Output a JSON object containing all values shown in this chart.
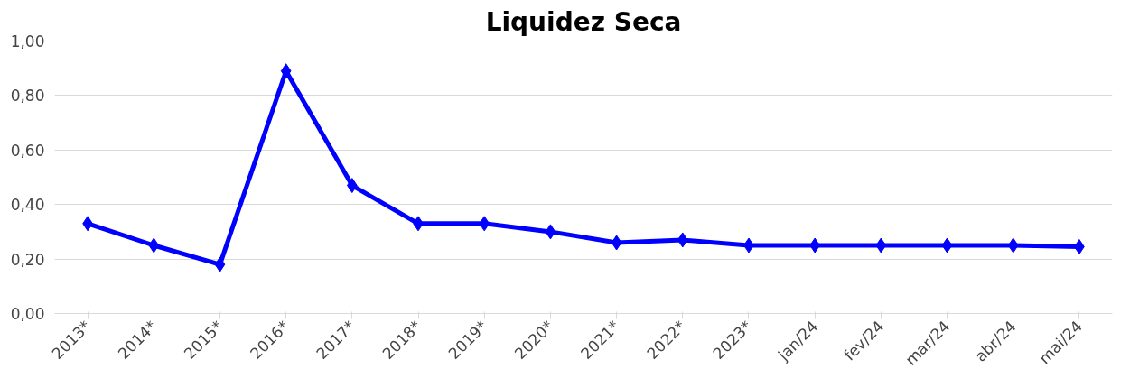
{
  "chart_data": {
    "type": "line",
    "title": "Liquidez Seca",
    "categories": [
      "2013*",
      "2014*",
      "2015*",
      "2016*",
      "2017*",
      "2018*",
      "2019*",
      "2020*",
      "2021*",
      "2022*",
      "2023*",
      "jan/24",
      "fev/24",
      "mar/24",
      "abr/24",
      "mai/24"
    ],
    "series": [
      {
        "color": "#0000ff",
        "values": [
          0.33,
          0.25,
          0.18,
          0.89,
          0.47,
          0.33,
          0.33,
          0.3,
          0.26,
          0.27,
          0.25,
          0.25,
          0.25,
          0.25,
          0.25,
          0.245
        ]
      }
    ],
    "ylim": [
      0,
      1
    ],
    "yticks": [
      {
        "value": 0,
        "label": "0,00"
      },
      {
        "value": 0.2,
        "label": "0,20"
      },
      {
        "value": 0.4,
        "label": "0,40"
      },
      {
        "value": 0.6,
        "label": "0,60"
      },
      {
        "value": 0.8,
        "label": "0,80"
      },
      {
        "value": 1,
        "label": "1,00"
      }
    ],
    "grid": "y",
    "marker": "diamond",
    "line_style": "solid"
  }
}
